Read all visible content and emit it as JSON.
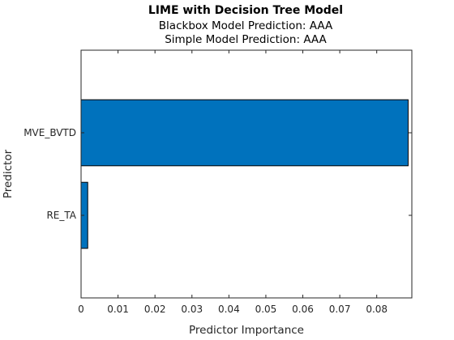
{
  "chart_data": {
    "type": "bar",
    "orientation": "horizontal",
    "title": "LIME with Decision Tree Model",
    "subtitle_lines": [
      "Blackbox Model Prediction: AAA",
      "Simple Model Prediction: AAA"
    ],
    "xlabel": "Predictor Importance",
    "ylabel": "Predictor",
    "categories": [
      "MVE_BVTD",
      "RE_TA"
    ],
    "values": [
      0.0885,
      0.0018
    ],
    "xlim": [
      0,
      0.0895
    ],
    "xticks": [
      "0",
      "0.01",
      "0.02",
      "0.03",
      "0.04",
      "0.05",
      "0.06",
      "0.07",
      "0.08"
    ],
    "grid": false,
    "bar_color": "#0072bd",
    "bar_edge_color": "#000000"
  }
}
